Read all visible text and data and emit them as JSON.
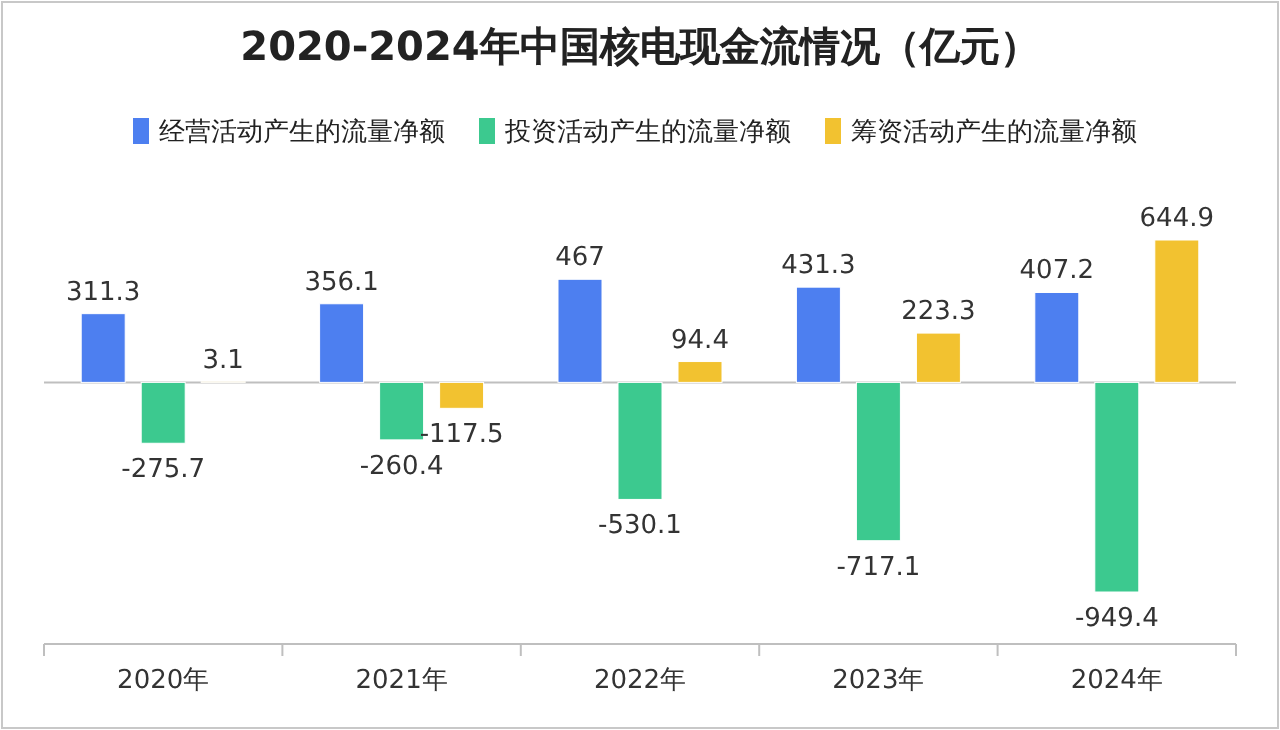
{
  "chart_data": {
    "type": "bar",
    "title": "2020-2024年中国核电现金流情况（亿元）",
    "categories": [
      "2020年",
      "2021年",
      "2022年",
      "2023年",
      "2024年"
    ],
    "series": [
      {
        "name": "经营活动产生的流量净额",
        "color": "#4d7ff0",
        "values": [
          311.3,
          356.1,
          467,
          431.3,
          407.2
        ]
      },
      {
        "name": "投资活动产生的流量净额",
        "color": "#3cc98f",
        "values": [
          -275.7,
          -260.4,
          -530.1,
          -717.1,
          -949.4
        ]
      },
      {
        "name": "筹资活动产生的流量净额",
        "color": "#f2c230",
        "values": [
          3.1,
          -117.5,
          94.4,
          223.3,
          644.9
        ]
      }
    ],
    "data_labels": true,
    "legend": "top"
  }
}
